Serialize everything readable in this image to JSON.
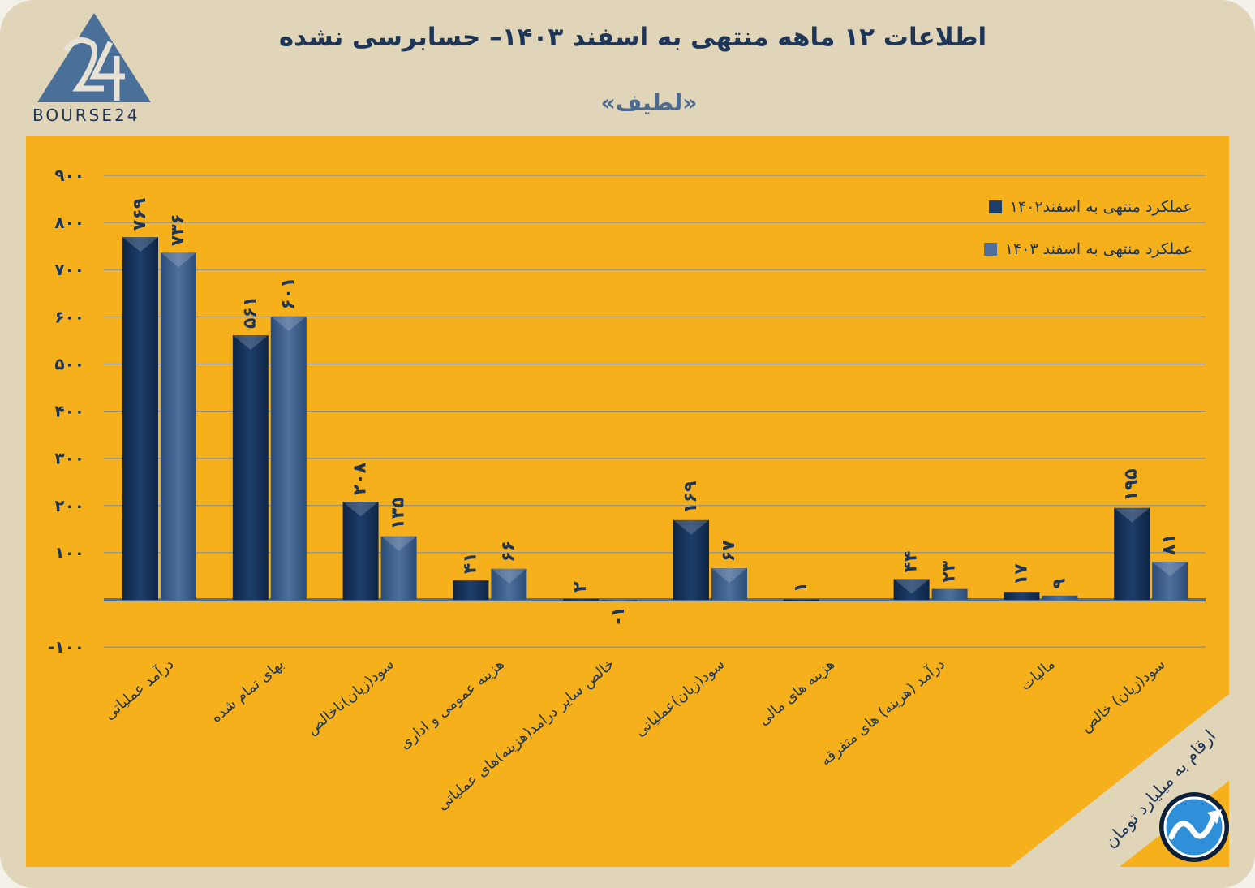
{
  "header": {
    "title": "اطلاعات ۱۲ ماهه منتهی به اسفند  ۱۴۰۳– حسابرسی نشده",
    "subtitle": "«لطیف»",
    "logo_text": "BOURSE24"
  },
  "footer": {
    "unit_note": "ارقام به میلیارد تومان"
  },
  "colors": {
    "background": "#e0d5b8",
    "panel": "#f5b01c",
    "series_1402": "#1d3e6b",
    "series_1403": "#4f6f9c",
    "text": "#1d3557",
    "grid": "#8a8f99"
  },
  "icons": [
    "bourse24-logo-icon",
    "trend-arrow-icon"
  ],
  "chart_data": {
    "type": "bar",
    "title": "اطلاعات ۱۲ ماهه منتهی به اسفند  ۱۴۰۳– حسابرسی نشده",
    "subtitle": "«لطیف»",
    "xlabel": "",
    "ylabel": "",
    "ylim": [
      -100,
      900
    ],
    "yticks": [
      "۹۰۰",
      "۸۰۰",
      "۷۰۰",
      "۶۰۰",
      "۵۰۰",
      "۴۰۰",
      "۳۰۰",
      "۲۰۰",
      "۱۰۰",
      "-۱۰۰"
    ],
    "ytick_values": [
      900,
      800,
      700,
      600,
      500,
      400,
      300,
      200,
      100,
      -100
    ],
    "grid": true,
    "legend_position": "top-right",
    "categories": [
      "درآمد عملیاتی",
      "بهای تمام شده",
      "سود(زیان)ناخالص",
      "هزینه عمومی و اداری",
      "خالص سایر درامد(هزینه)های عملیاتی",
      "سود(زیان)عملیاتی",
      "هزینه های مالی",
      "درآمد (هزینه) های متفرقه",
      "مالیات",
      "سود(زیان) خالص"
    ],
    "series": [
      {
        "name": "عملکرد منتهی به اسفند۱۴۰۲",
        "values": [
          769,
          561,
          208,
          41,
          2,
          169,
          1,
          44,
          17,
          195
        ],
        "labels": [
          "۷۶۹",
          "۵۶۱",
          "۲۰۸",
          "۴۱",
          "۲",
          "۱۶۹",
          "۱",
          "۴۴",
          "۱۷",
          "۱۹۵"
        ]
      },
      {
        "name": "عملکرد منتهی به اسفند ۱۴۰۳",
        "values": [
          736,
          601,
          135,
          66,
          -1,
          67,
          0,
          23,
          9,
          81
        ],
        "labels": [
          "۷۳۶",
          "۶۰۱",
          "۱۳۵",
          "۶۶",
          "-۱",
          "۶۷",
          "",
          "۲۳",
          "۹",
          "۸۱"
        ]
      }
    ]
  }
}
